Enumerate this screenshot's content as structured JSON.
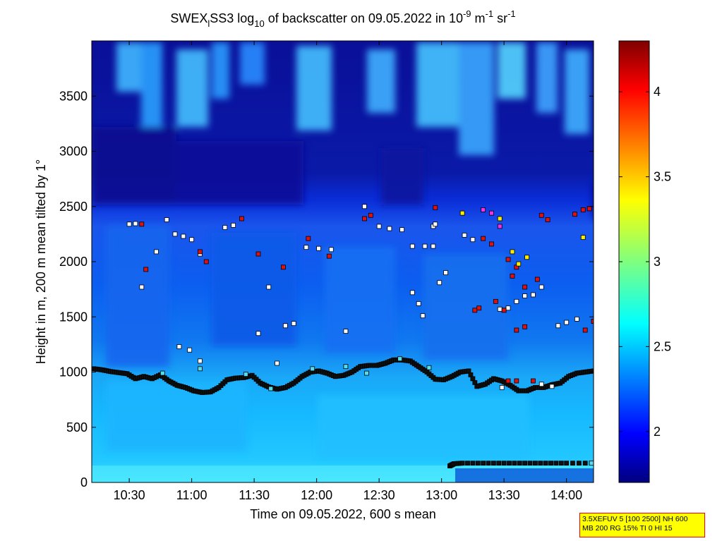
{
  "title_parts": {
    "main": "SWEX",
    "sub1": "l",
    "mid": "SS3 log",
    "sub2": "10",
    "rest": " of backscatter on 09.05.2022 in 10",
    "sup1": "-9",
    "unit1": " m",
    "sup2": "-1",
    "unit2": " sr",
    "sup3": "-1"
  },
  "info_box": {
    "line1": "3.5XEFUV 5 [100 2500] NH 600",
    "line2": "MB 200 RG 15% TI 0 HI 15",
    "background": "#ffff00",
    "border": "#ff0000"
  },
  "chart_data": {
    "type": "heatmap",
    "title": "SWEX_lSS3 log10 of backscatter on 09.05.2022 in 10^-9 m^-1 sr^-1",
    "xlabel": "Time on 09.05.2022, 600 s mean",
    "ylabel": "Height in m, 200 m mean tilted by 1°",
    "xlim_minutes": [
      612,
      853
    ],
    "ylim": [
      0,
      4000
    ],
    "x_tick_minutes": [
      630,
      660,
      690,
      720,
      750,
      780,
      810,
      840
    ],
    "x_tick_labels": [
      "10:30",
      "11:00",
      "11:30",
      "12:00",
      "12:30",
      "13:00",
      "13:30",
      "14:00"
    ],
    "y_ticks": [
      0,
      500,
      1000,
      1500,
      2000,
      2500,
      3000,
      3500
    ],
    "y_tick_labels": [
      "0",
      "500",
      "1000",
      "1500",
      "2000",
      "2500",
      "3000",
      "3500"
    ],
    "colorbar": {
      "range": [
        1.7,
        4.3
      ],
      "ticks": [
        2,
        2.5,
        3,
        3.5,
        4
      ],
      "tick_labels": [
        "2",
        "2.5",
        "3",
        "3.5",
        "4"
      ],
      "colormap": "jet"
    },
    "layer_series": [
      {
        "color_key": "black",
        "points": [
          [
            613,
            1030
          ],
          [
            617,
            1020
          ],
          [
            621,
            1005
          ],
          [
            625,
            995
          ],
          [
            629,
            985
          ],
          [
            633,
            940
          ],
          [
            637,
            960
          ],
          [
            641,
            940
          ],
          [
            645,
            975
          ],
          [
            649,
            920
          ],
          [
            653,
            880
          ],
          [
            657,
            860
          ],
          [
            661,
            830
          ],
          [
            665,
            815
          ],
          [
            669,
            820
          ],
          [
            673,
            860
          ],
          [
            677,
            930
          ],
          [
            681,
            945
          ],
          [
            685,
            950
          ],
          [
            689,
            970
          ],
          [
            693,
            900
          ],
          [
            697,
            865
          ],
          [
            701,
            845
          ],
          [
            705,
            860
          ],
          [
            709,
            900
          ],
          [
            713,
            960
          ],
          [
            717,
            1000
          ],
          [
            721,
            1010
          ],
          [
            725,
            990
          ],
          [
            729,
            960
          ],
          [
            733,
            970
          ],
          [
            737,
            1000
          ],
          [
            741,
            1050
          ],
          [
            745,
            1060
          ],
          [
            749,
            1060
          ],
          [
            753,
            1080
          ],
          [
            757,
            1110
          ],
          [
            761,
            1110
          ],
          [
            765,
            1100
          ],
          [
            769,
            1050
          ],
          [
            773,
            1000
          ],
          [
            777,
            935
          ],
          [
            781,
            930
          ],
          [
            785,
            960
          ],
          [
            789,
            1000
          ],
          [
            793,
            1010
          ],
          [
            797,
            870
          ],
          [
            801,
            890
          ],
          [
            805,
            940
          ],
          [
            809,
            920
          ],
          [
            813,
            880
          ],
          [
            817,
            830
          ],
          [
            821,
            830
          ],
          [
            825,
            860
          ],
          [
            829,
            860
          ],
          [
            833,
            885
          ],
          [
            837,
            900
          ],
          [
            841,
            960
          ],
          [
            845,
            990
          ],
          [
            849,
            1000
          ],
          [
            853,
            1010
          ]
        ]
      },
      {
        "color_key": "black",
        "points": [
          [
            784,
            150
          ],
          [
            786,
            170
          ],
          [
            790,
            175
          ],
          [
            800,
            175
          ],
          [
            810,
            175
          ],
          [
            820,
            175
          ],
          [
            830,
            175
          ],
          [
            840,
            175
          ],
          [
            852,
            175
          ]
        ]
      },
      {
        "color_key": "white",
        "points": [
          [
            630,
            2340
          ],
          [
            633,
            2345
          ],
          [
            636,
            1770
          ],
          [
            643,
            2090
          ],
          [
            648,
            2380
          ],
          [
            652,
            2250
          ],
          [
            656,
            2230
          ],
          [
            660,
            2200
          ],
          [
            664,
            2070
          ],
          [
            676,
            2310
          ],
          [
            680,
            2330
          ],
          [
            692,
            1350
          ],
          [
            697,
            1770
          ],
          [
            701,
            1080
          ],
          [
            705,
            1420
          ],
          [
            709,
            1440
          ],
          [
            715,
            2130
          ],
          [
            721,
            2120
          ],
          [
            727,
            2110
          ],
          [
            734,
            1370
          ],
          [
            743,
            2500
          ],
          [
            750,
            2320
          ],
          [
            755,
            2300
          ],
          [
            761,
            2290
          ],
          [
            766,
            2140
          ],
          [
            772,
            2140
          ],
          [
            776,
            2140
          ],
          [
            776,
            2320
          ],
          [
            777,
            2340
          ],
          [
            779,
            1810
          ],
          [
            782,
            1900
          ],
          [
            766,
            1720
          ],
          [
            769,
            1620
          ],
          [
            771,
            1510
          ],
          [
            791,
            2240
          ],
          [
            795,
            2200
          ],
          [
            808,
            1570
          ],
          [
            812,
            1580
          ],
          [
            816,
            1640
          ],
          [
            820,
            1690
          ],
          [
            824,
            1700
          ],
          [
            828,
            1770
          ],
          [
            836,
            1420
          ],
          [
            840,
            1450
          ],
          [
            845,
            1480
          ],
          [
            654,
            1230
          ],
          [
            659,
            1200
          ],
          [
            664,
            1100
          ],
          [
            809,
            860
          ],
          [
            828,
            890
          ],
          [
            833,
            870
          ]
        ]
      },
      {
        "color_key": "red",
        "points": [
          [
            636,
            2340
          ],
          [
            638,
            1930
          ],
          [
            664,
            2090
          ],
          [
            667,
            2000
          ],
          [
            684,
            2390
          ],
          [
            692,
            2070
          ],
          [
            704,
            1950
          ],
          [
            716,
            2210
          ],
          [
            726,
            2050
          ],
          [
            743,
            2390
          ],
          [
            746,
            2420
          ],
          [
            777,
            2490
          ],
          [
            800,
            2210
          ],
          [
            804,
            2160
          ],
          [
            812,
            2020
          ],
          [
            814,
            1870
          ],
          [
            816,
            1950
          ],
          [
            820,
            1770
          ],
          [
            826,
            1840
          ],
          [
            828,
            2420
          ],
          [
            831,
            2380
          ],
          [
            844,
            2430
          ],
          [
            848,
            2470
          ],
          [
            851,
            2480
          ],
          [
            849,
            1380
          ],
          [
            853,
            1460
          ],
          [
            816,
            1380
          ],
          [
            820,
            1410
          ],
          [
            806,
            1640
          ],
          [
            810,
            1560
          ],
          [
            796,
            1560
          ],
          [
            798,
            1580
          ],
          [
            812,
            920
          ],
          [
            816,
            920
          ],
          [
            824,
            920
          ]
        ]
      },
      {
        "color_key": "yellow",
        "points": [
          [
            790,
            2440
          ],
          [
            808,
            2390
          ],
          [
            814,
            2090
          ],
          [
            817,
            1980
          ],
          [
            821,
            2040
          ],
          [
            848,
            2220
          ]
        ]
      },
      {
        "color_key": "magenta",
        "points": [
          [
            800,
            2470
          ],
          [
            804,
            2440
          ],
          [
            808,
            2320
          ]
        ]
      },
      {
        "color_key": "cyan",
        "points": [
          [
            646,
            990
          ],
          [
            664,
            1030
          ],
          [
            686,
            980
          ],
          [
            698,
            850
          ],
          [
            718,
            1030
          ],
          [
            734,
            1050
          ],
          [
            744,
            990
          ],
          [
            760,
            1120
          ],
          [
            774,
            1040
          ],
          [
            852,
            175
          ]
        ]
      }
    ]
  },
  "marker_colors": {
    "black": "#101010",
    "white": "#ffffff",
    "red": "#dd1111",
    "yellow": "#ffee00",
    "magenta": "#ee33ee",
    "cyan": "#55ddee"
  }
}
